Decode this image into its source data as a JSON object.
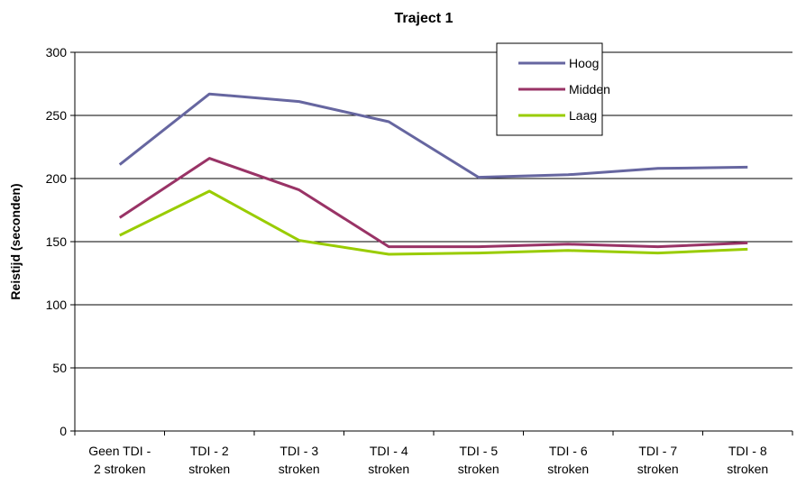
{
  "chart_data": {
    "type": "line",
    "title": "Traject 1",
    "ylabel": "Reistijd (seconden)",
    "xlabel": "",
    "ylim": [
      0,
      300
    ],
    "yticks": [
      0,
      50,
      100,
      150,
      200,
      250,
      300
    ],
    "grid": true,
    "legend_position": "top-right",
    "categories": [
      [
        "Geen TDI -",
        "2 stroken"
      ],
      [
        "TDI - 2",
        "stroken"
      ],
      [
        "TDI - 3",
        "stroken"
      ],
      [
        "TDI - 4",
        "stroken"
      ],
      [
        "TDI - 5",
        "stroken"
      ],
      [
        "TDI - 6",
        "stroken"
      ],
      [
        "TDI - 7",
        "stroken"
      ],
      [
        "TDI - 8",
        "stroken"
      ]
    ],
    "series": [
      {
        "name": "Hoog",
        "color": "#6666a0",
        "values": [
          211,
          267,
          261,
          245,
          201,
          203,
          208,
          209
        ]
      },
      {
        "name": "Midden",
        "color": "#993366",
        "values": [
          169,
          216,
          191,
          146,
          146,
          148,
          146,
          149
        ]
      },
      {
        "name": "Laag",
        "color": "#99cc00",
        "values": [
          155,
          190,
          151,
          140,
          141,
          143,
          141,
          144
        ]
      }
    ]
  }
}
